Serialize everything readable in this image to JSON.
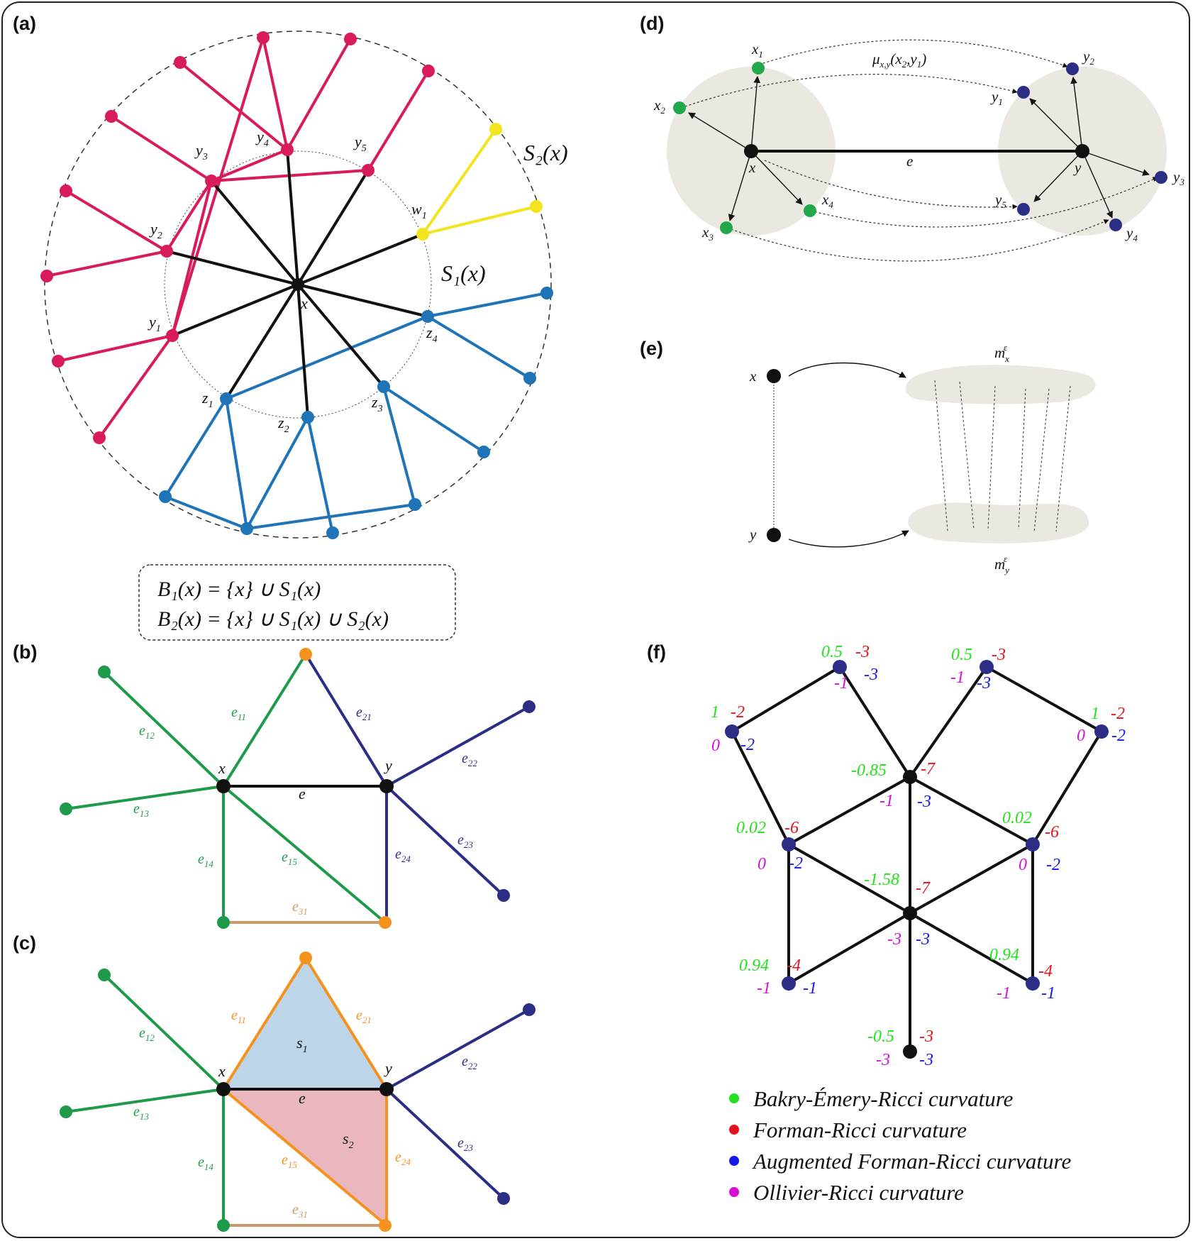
{
  "panels": {
    "a": {
      "label": "(a)",
      "center": "x",
      "s1_label": "S₁(x)",
      "s2_label": "S₂(x)",
      "y_nodes": [
        "y1",
        "y2",
        "y3",
        "y4",
        "y5"
      ],
      "z_nodes": [
        "z1",
        "z2",
        "z3",
        "z4"
      ],
      "w_nodes": [
        "w1"
      ],
      "formula_line1": "B₁(x) = {x} ∪ S₁(x)",
      "formula_line2": "B₂(x) = {x} ∪ S₁(x) ∪ S₂(x)",
      "colors": {
        "core": "#111111",
        "y_group": "#d81b5a",
        "z_group": "#1f74b8",
        "w_group": "#f2e51f"
      }
    },
    "b": {
      "label": "(b)",
      "nodes": [
        "x",
        "y"
      ],
      "edge": "e",
      "edges_x": [
        "e11",
        "e12",
        "e13",
        "e14",
        "e15"
      ],
      "edges_y": [
        "e21",
        "e22",
        "e23",
        "e24"
      ],
      "edges_other": [
        "e31"
      ],
      "colors": {
        "x_edges": "#1f9a4a",
        "y_edges": "#2c2e86",
        "leaf_orange": "#f5921e",
        "e31": "#c79b6a"
      }
    },
    "c": {
      "label": "(c)",
      "nodes": [
        "x",
        "y"
      ],
      "edge": "e",
      "faces": [
        "s1",
        "s2"
      ],
      "edges": [
        "e11",
        "e12",
        "e13",
        "e14",
        "e15",
        "e21",
        "e22",
        "e23",
        "e24",
        "e31"
      ],
      "colors": {
        "s1_fill": "#bcd5e8",
        "s2_fill": "#ebb7bf",
        "face_edges": "#f5921e"
      }
    },
    "d": {
      "label": "(d)",
      "nodes": [
        "x",
        "y"
      ],
      "edge": "e",
      "x_neighbors": [
        "x1",
        "x2",
        "x3",
        "x4"
      ],
      "y_neighbors": [
        "y1",
        "y2",
        "y3",
        "y4",
        "y5"
      ],
      "transport": "μx,y(x2,y1)",
      "colors": {
        "x_neighbors": "#20a84a",
        "y_neighbors": "#2c2e86",
        "ball": "#ebe7e1"
      }
    },
    "e": {
      "label": "(e)",
      "nodes": [
        "x",
        "y"
      ],
      "measure_x": "m",
      "measure_y": "m",
      "epsilon": "ε"
    },
    "f": {
      "label": "(f)",
      "colors": {
        "bakry": "#22e01a",
        "forman": "#e3131b",
        "augmented": "#1717e6",
        "ollivier": "#d50fd5",
        "node": "#2c2e86",
        "hub": "#111111"
      },
      "legend": [
        {
          "label": "Bakry-Émery-Ricci curvature",
          "color": "#22e01a"
        },
        {
          "label": "Forman-Ricci curvature",
          "color": "#e3131b"
        },
        {
          "label": "Augmented Forman-Ricci curvature",
          "color": "#1717e6"
        },
        {
          "label": "Ollivier-Ricci curvature",
          "color": "#d50fd5"
        }
      ],
      "nodes": [
        {
          "id": "top_left",
          "bakry": "0.5",
          "forman": "-3",
          "augmented": "-3",
          "ollivier": "-1"
        },
        {
          "id": "top_right",
          "bakry": "0.5",
          "forman": "-3",
          "augmented": "-3",
          "ollivier": "-1"
        },
        {
          "id": "left",
          "bakry": "1",
          "forman": "-2",
          "augmented": "-2",
          "ollivier": "0"
        },
        {
          "id": "right",
          "bakry": "1",
          "forman": "-2",
          "augmented": "-2",
          "ollivier": "0"
        },
        {
          "id": "hub_upper",
          "bakry": "-0.85",
          "forman": "-7",
          "augmented": "-3",
          "ollivier": "-1"
        },
        {
          "id": "mid_left",
          "bakry": "0.02",
          "forman": "-6",
          "augmented": "-2",
          "ollivier": "0"
        },
        {
          "id": "mid_right",
          "bakry": "0.02",
          "forman": "-6",
          "augmented": "-2",
          "ollivier": "0"
        },
        {
          "id": "hub_lower",
          "bakry": "-1.58",
          "forman": "-7",
          "augmented": "-3",
          "ollivier": "-3"
        },
        {
          "id": "low_left",
          "bakry": "0.94",
          "forman": "-4",
          "augmented": "-1",
          "ollivier": "-1"
        },
        {
          "id": "low_right",
          "bakry": "0.94",
          "forman": "-4",
          "augmented": "-1",
          "ollivier": "-1"
        },
        {
          "id": "bottom",
          "bakry": "-0.5",
          "forman": "-3",
          "augmented": "-3",
          "ollivier": "-3"
        }
      ]
    }
  }
}
